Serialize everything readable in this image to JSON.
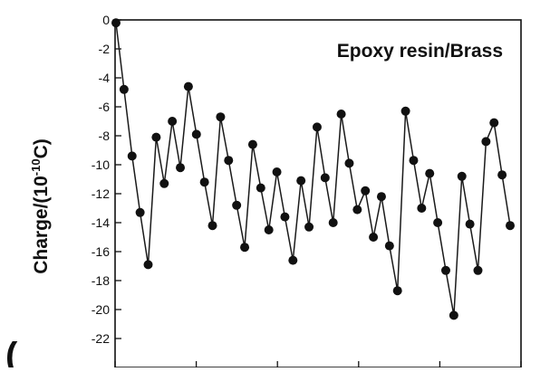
{
  "chart_data": {
    "type": "line",
    "annotation": "Epoxy resin/Brass",
    "ylabel_main": "Charge/(10",
    "ylabel_exp": "-10",
    "ylabel_unit": "C)",
    "ylim": [
      -24,
      0
    ],
    "yticks": [
      0,
      -2,
      -4,
      -6,
      -8,
      -10,
      -12,
      -14,
      -16,
      -18,
      -20,
      -22
    ],
    "grid": false,
    "legend": "none",
    "series": [
      {
        "values": [
          -0.2,
          -4.8,
          -9.4,
          -13.3,
          -16.9,
          -8.1,
          -11.3,
          -7.0,
          -10.2,
          -4.6,
          -7.9,
          -11.2,
          -14.2,
          -6.7,
          -9.7,
          -12.8,
          -15.7,
          -8.6,
          -11.6,
          -14.5,
          -10.5,
          -13.6,
          -16.6,
          -11.1,
          -14.3,
          -7.4,
          -10.9,
          -14.0,
          -6.5,
          -9.9,
          -13.1,
          -11.8,
          -15.0,
          -12.2,
          -15.6,
          -18.7,
          -6.3,
          -9.7,
          -13.0,
          -10.6,
          -14.0,
          -17.3,
          -20.4,
          -10.8,
          -14.1,
          -17.3,
          -8.4,
          -7.1,
          -10.7,
          -14.2
        ]
      }
    ],
    "colors": {
      "line": "#1a1a1a",
      "marker": "#111111",
      "axis": "#111111"
    }
  }
}
